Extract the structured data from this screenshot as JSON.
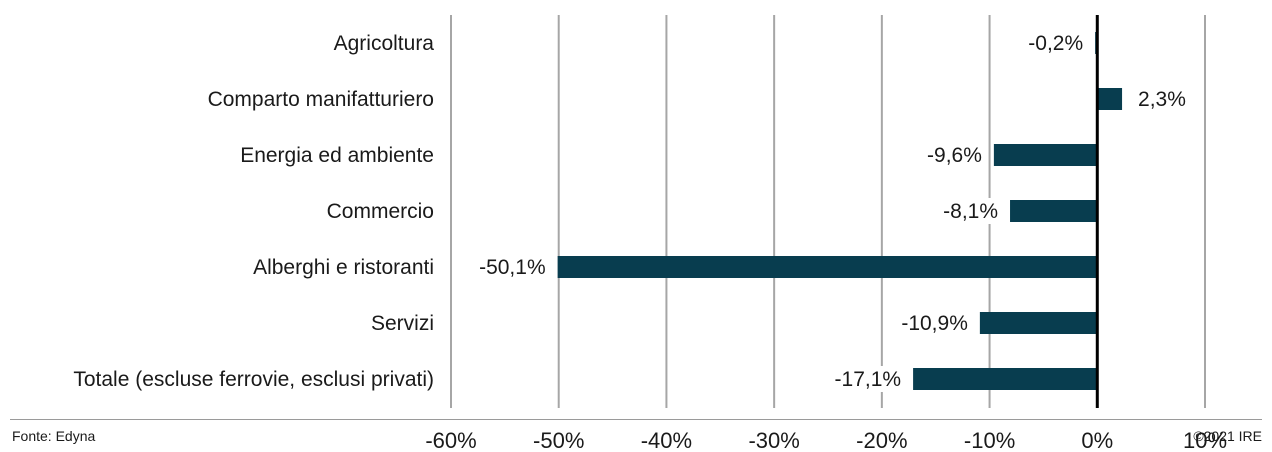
{
  "chart_data": {
    "type": "bar",
    "orientation": "horizontal",
    "categories": [
      "Agricoltura",
      "Comparto manifatturiero",
      "Energia ed ambiente",
      "Commercio",
      "Alberghi e ristoranti",
      "Servizi",
      "Totale (escluse ferrovie, esclusi privati)"
    ],
    "values": [
      -0.2,
      2.3,
      -9.6,
      -8.1,
      -50.1,
      -10.9,
      -17.1
    ],
    "value_labels": [
      "-0,2%",
      "2,3%",
      "-9,6%",
      "-8,1%",
      "-50,1%",
      "-10,9%",
      "-17,1%"
    ],
    "xlim": [
      -60,
      10
    ],
    "xticks": [
      -60,
      -50,
      -40,
      -30,
      -20,
      -10,
      0,
      10
    ],
    "xtick_labels": [
      "-60%",
      "-50%",
      "-40%",
      "-30%",
      "-20%",
      "-10%",
      "0%",
      "10%"
    ],
    "grid": "vertical",
    "bar_color": "#083d4f",
    "title": "",
    "xlabel": "",
    "ylabel": ""
  },
  "footer": {
    "source": "Fonte: Edyna",
    "copyright": "©2021 IRE"
  }
}
